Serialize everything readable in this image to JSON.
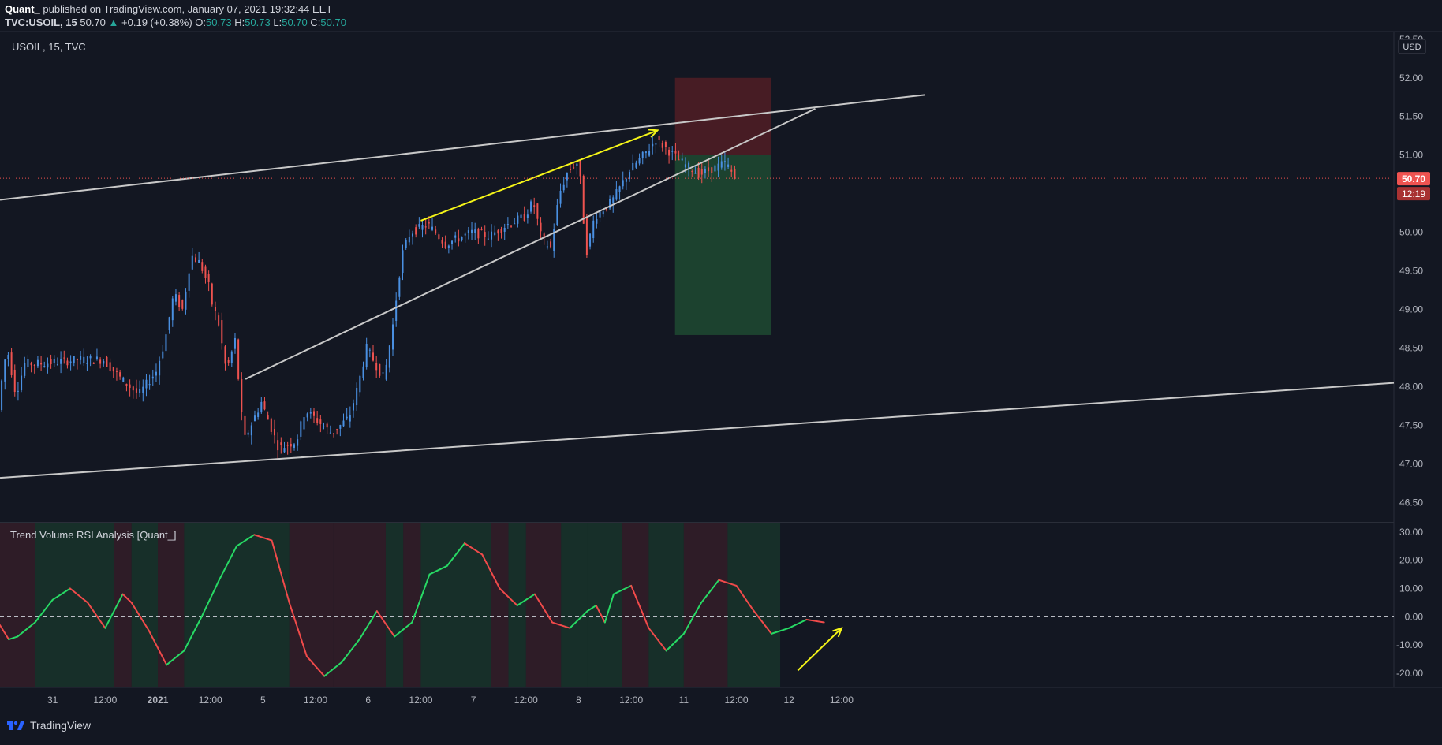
{
  "header": {
    "author": "Quant_",
    "published": " published on TradingView.com, January 07, 2021 19:32:44 EET",
    "symbol": "TVC:USOIL, 15",
    "last": "50.70",
    "arrow": "▲",
    "change": "+0.19 (+0.38%)",
    "o_label": "O:",
    "o_value": "50.73",
    "h_label": "H:",
    "h_value": "50.73",
    "l_label": "L:",
    "l_value": "50.70",
    "c_label": "C:",
    "c_value": "50.70"
  },
  "main_pane": {
    "legend": "USOIL, 15, TVC",
    "currency": "USD",
    "price_tag": "50.70",
    "countdown": "12:19",
    "y_ticks": [
      "52.50",
      "52.00",
      "51.50",
      "51.00",
      "50.50",
      "50.00",
      "49.50",
      "49.00",
      "48.50",
      "48.00",
      "47.50",
      "47.00",
      "46.50"
    ]
  },
  "indicator_pane": {
    "legend": "Trend Volume RSI Analysis [Quant_]",
    "y_ticks": [
      "30.00",
      "20.00",
      "10.00",
      "0.00",
      "-10.00",
      "-20.00"
    ]
  },
  "time_axis": {
    "labels": [
      "31",
      "12:00",
      "2021",
      "12:00",
      "5",
      "12:00",
      "6",
      "12:00",
      "7",
      "12:00",
      "8",
      "12:00",
      "11",
      "12:00",
      "12",
      "12:00"
    ]
  },
  "footer": {
    "brand": "TradingView"
  },
  "colors": {
    "background": "#131722",
    "up": "#26a69a",
    "up_candle": "#4a90e2",
    "down": "#ef5350",
    "annotation": "#f5f518",
    "trendline": "#c8c8c8",
    "rsi_up": "#27d964",
    "rsi_down": "#f04a4a"
  },
  "chart_data": [
    {
      "type": "candlestick",
      "title": "USOIL, 15, TVC",
      "ylim": [
        46.25,
        52.6
      ],
      "x_range": [
        "2020-12-30 12:00",
        "2021-01-12 18:00"
      ],
      "price_path": [
        {
          "t": "2020-12-30 12:00",
          "p": 47.7
        },
        {
          "t": "2020-12-30 13:00",
          "p": 48.2
        },
        {
          "t": "2020-12-30 14:00",
          "p": 48.5
        },
        {
          "t": "2020-12-30 16:00",
          "p": 47.9
        },
        {
          "t": "2020-12-30 18:00",
          "p": 48.3
        },
        {
          "t": "2020-12-30 22:00",
          "p": 48.3
        },
        {
          "t": "2020-12-31 06:00",
          "p": 48.35
        },
        {
          "t": "2020-12-31 12:00",
          "p": 48.35
        },
        {
          "t": "2020-12-31 16:00",
          "p": 48.1
        },
        {
          "t": "2020-12-31 20:00",
          "p": 47.9
        },
        {
          "t": "2020-12-31 22:00",
          "p": 48.05
        },
        {
          "t": "2021-01-01 00:00",
          "p": 48.2
        },
        {
          "t": "2021-01-01 02:00",
          "p": 48.6
        },
        {
          "t": "2021-01-01 04:00",
          "p": 49.2
        },
        {
          "t": "2021-01-01 06:00",
          "p": 49.0
        },
        {
          "t": "2021-01-01 08:00",
          "p": 49.7
        },
        {
          "t": "2021-01-01 10:00",
          "p": 49.6
        },
        {
          "t": "2021-01-01 12:00",
          "p": 49.3
        },
        {
          "t": "2021-01-01 13:00",
          "p": 49.0
        },
        {
          "t": "2021-01-01 14:00",
          "p": 48.9
        },
        {
          "t": "2021-01-01 16:00",
          "p": 48.2
        },
        {
          "t": "2021-01-01 18:00",
          "p": 48.6
        },
        {
          "t": "2021-01-01 20:00",
          "p": 47.3
        },
        {
          "t": "2021-01-02 00:00",
          "p": 47.8
        },
        {
          "t": "2021-01-02 04:00",
          "p": 47.2
        },
        {
          "t": "2021-01-02 08:00",
          "p": 47.3
        },
        {
          "t": "2021-01-02 10:00",
          "p": 47.7
        },
        {
          "t": "2021-01-02 14:00",
          "p": 47.5
        },
        {
          "t": "2021-01-02 16:00",
          "p": 47.4
        },
        {
          "t": "2021-01-02 20:00",
          "p": 47.6
        },
        {
          "t": "2021-01-02 22:00",
          "p": 48.0
        },
        {
          "t": "2021-01-03 00:00",
          "p": 48.5
        },
        {
          "t": "2021-01-03 02:00",
          "p": 48.3
        },
        {
          "t": "2021-01-03 04:00",
          "p": 48.1
        },
        {
          "t": "2021-01-03 06:00",
          "p": 48.8
        },
        {
          "t": "2021-01-03 08:00",
          "p": 49.7
        },
        {
          "t": "2021-01-03 10:00",
          "p": 50.0
        },
        {
          "t": "2021-01-03 14:00",
          "p": 50.1
        },
        {
          "t": "2021-01-03 18:00",
          "p": 49.85
        },
        {
          "t": "2021-01-04 00:00",
          "p": 50.0
        },
        {
          "t": "2021-01-04 04:00",
          "p": 49.95
        },
        {
          "t": "2021-01-04 08:00",
          "p": 50.1
        },
        {
          "t": "2021-01-04 12:00",
          "p": 50.2
        },
        {
          "t": "2021-01-04 14:00",
          "p": 50.4
        },
        {
          "t": "2021-01-04 16:00",
          "p": 49.9
        },
        {
          "t": "2021-01-04 18:00",
          "p": 49.8
        },
        {
          "t": "2021-01-04 20:00",
          "p": 50.5
        },
        {
          "t": "2021-01-04 22:00",
          "p": 50.8
        },
        {
          "t": "2021-01-05 00:00",
          "p": 50.9
        },
        {
          "t": "2021-01-05 01:00",
          "p": 50.6
        },
        {
          "t": "2021-01-05 02:00",
          "p": 49.7
        },
        {
          "t": "2021-01-05 04:00",
          "p": 50.2
        },
        {
          "t": "2021-01-05 08:00",
          "p": 50.4
        },
        {
          "t": "2021-01-05 12:00",
          "p": 50.8
        },
        {
          "t": "2021-01-05 16:00",
          "p": 51.05
        },
        {
          "t": "2021-01-05 18:00",
          "p": 51.2
        },
        {
          "t": "2021-01-05 20:00",
          "p": 51.1
        },
        {
          "t": "2021-01-06 00:00",
          "p": 50.9
        },
        {
          "t": "2021-01-06 04:00",
          "p": 50.75
        },
        {
          "t": "2021-01-06 08:00",
          "p": 50.85
        },
        {
          "t": "2021-01-06 10:00",
          "p": 50.9
        },
        {
          "t": "2021-01-06 12:00",
          "p": 50.7
        }
      ],
      "last_price": 50.7,
      "annotations": [
        {
          "kind": "trendline",
          "from": {
            "t": "2020-12-30 12:00",
            "p": 50.42
          },
          "to": {
            "t": "2021-01-08 07:00",
            "p": 51.78
          }
        },
        {
          "kind": "trendline",
          "from": {
            "t": "2021-01-01 20:00",
            "p": 48.1
          },
          "to": {
            "t": "2021-01-07 06:00",
            "p": 51.6
          }
        },
        {
          "kind": "trendline",
          "from": {
            "t": "2020-12-30 12:00",
            "p": 46.82
          },
          "to": {
            "t": "2021-01-12 18:00",
            "p": 48.05
          }
        },
        {
          "kind": "arrow",
          "color": "yellow",
          "from": {
            "t": "2021-01-03 12:00",
            "p": 50.15
          },
          "to": {
            "t": "2021-01-05 18:00",
            "p": 51.32
          }
        },
        {
          "kind": "short_position",
          "entry": 51.0,
          "stop": 52.0,
          "target": 48.67,
          "from": "2021-01-05 22:00",
          "to": "2021-01-06 20:00"
        }
      ]
    },
    {
      "type": "line",
      "title": "Trend Volume RSI Analysis [Quant_]",
      "ylim": [
        -25,
        33
      ],
      "x_range": [
        "2020-12-30 12:00",
        "2021-01-12 18:00"
      ],
      "series": [
        {
          "values": [
            {
              "t": "2020-12-30 12:00",
              "v": -3
            },
            {
              "t": "2020-12-30 14:00",
              "v": -8
            },
            {
              "t": "2020-12-30 16:00",
              "v": -7
            },
            {
              "t": "2020-12-30 20:00",
              "v": -2
            },
            {
              "t": "2020-12-31 00:00",
              "v": 6
            },
            {
              "t": "2020-12-31 04:00",
              "v": 10
            },
            {
              "t": "2020-12-31 08:00",
              "v": 5
            },
            {
              "t": "2020-12-31 12:00",
              "v": -4
            },
            {
              "t": "2020-12-31 14:00",
              "v": 2
            },
            {
              "t": "2020-12-31 16:00",
              "v": 8
            },
            {
              "t": "2020-12-31 18:00",
              "v": 5
            },
            {
              "t": "2020-12-31 22:00",
              "v": -5
            },
            {
              "t": "2021-01-01 02:00",
              "v": -17
            },
            {
              "t": "2021-01-01 06:00",
              "v": -12
            },
            {
              "t": "2021-01-01 10:00",
              "v": 0
            },
            {
              "t": "2021-01-01 14:00",
              "v": 13
            },
            {
              "t": "2021-01-01 18:00",
              "v": 25
            },
            {
              "t": "2021-01-01 22:00",
              "v": 29
            },
            {
              "t": "2021-01-02 02:00",
              "v": 27
            },
            {
              "t": "2021-01-02 06:00",
              "v": 5
            },
            {
              "t": "2021-01-02 10:00",
              "v": -14
            },
            {
              "t": "2021-01-02 14:00",
              "v": -21
            },
            {
              "t": "2021-01-02 18:00",
              "v": -16
            },
            {
              "t": "2021-01-02 22:00",
              "v": -8
            },
            {
              "t": "2021-01-03 02:00",
              "v": 2
            },
            {
              "t": "2021-01-03 06:00",
              "v": -7
            },
            {
              "t": "2021-01-03 10:00",
              "v": -2
            },
            {
              "t": "2021-01-03 14:00",
              "v": 15
            },
            {
              "t": "2021-01-03 18:00",
              "v": 18
            },
            {
              "t": "2021-01-03 22:00",
              "v": 26
            },
            {
              "t": "2021-01-04 02:00",
              "v": 22
            },
            {
              "t": "2021-01-04 06:00",
              "v": 10
            },
            {
              "t": "2021-01-04 10:00",
              "v": 4
            },
            {
              "t": "2021-01-04 14:00",
              "v": 8
            },
            {
              "t": "2021-01-04 18:00",
              "v": -2
            },
            {
              "t": "2021-01-04 22:00",
              "v": -4
            },
            {
              "t": "2021-01-05 02:00",
              "v": 2
            },
            {
              "t": "2021-01-05 04:00",
              "v": 4
            },
            {
              "t": "2021-01-05 06:00",
              "v": -2
            },
            {
              "t": "2021-01-05 08:00",
              "v": 8
            },
            {
              "t": "2021-01-05 12:00",
              "v": 11
            },
            {
              "t": "2021-01-05 16:00",
              "v": -4
            },
            {
              "t": "2021-01-05 20:00",
              "v": -12
            },
            {
              "t": "2021-01-06 00:00",
              "v": -6
            },
            {
              "t": "2021-01-06 04:00",
              "v": 5
            },
            {
              "t": "2021-01-06 08:00",
              "v": 13
            },
            {
              "t": "2021-01-06 12:00",
              "v": 11
            },
            {
              "t": "2021-01-06 16:00",
              "v": 2
            },
            {
              "t": "2021-01-06 20:00",
              "v": -6
            },
            {
              "t": "2021-01-07 00:00",
              "v": -4
            },
            {
              "t": "2021-01-07 04:00",
              "v": -1
            },
            {
              "t": "2021-01-07 08:00",
              "v": -2
            }
          ]
        }
      ],
      "annotations": [
        {
          "kind": "arrow",
          "color": "yellow",
          "from": {
            "t": "2021-01-07 02:00",
            "v": -19
          },
          "to": {
            "t": "2021-01-07 12:00",
            "v": -4
          }
        }
      ]
    }
  ]
}
